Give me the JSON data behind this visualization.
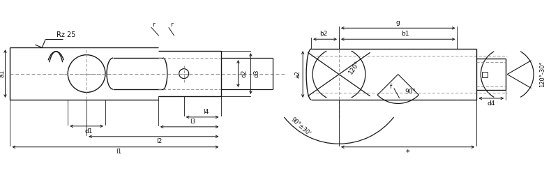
{
  "bg_color": "#ffffff",
  "lc": "#1a1a1a",
  "dc": "#1a1a1a",
  "figsize": [
    8.0,
    2.61
  ],
  "dpi": 100,
  "labels": {
    "a1": "a1",
    "a2": "a2",
    "b1": "b1",
    "b2": "b2",
    "d1": "d1",
    "d2": "d2",
    "d3": "d3",
    "d4": "d4",
    "g": "g",
    "f": "f",
    "l1": "l1",
    "l2": "l2",
    "l3": "l3",
    "l4": "l4",
    "r": "r",
    "rz25": "Rz 25",
    "angle1": "120°",
    "angle2": "90°±30'",
    "angle3": "90°",
    "angle4": "120°-30°",
    "star": "*"
  }
}
